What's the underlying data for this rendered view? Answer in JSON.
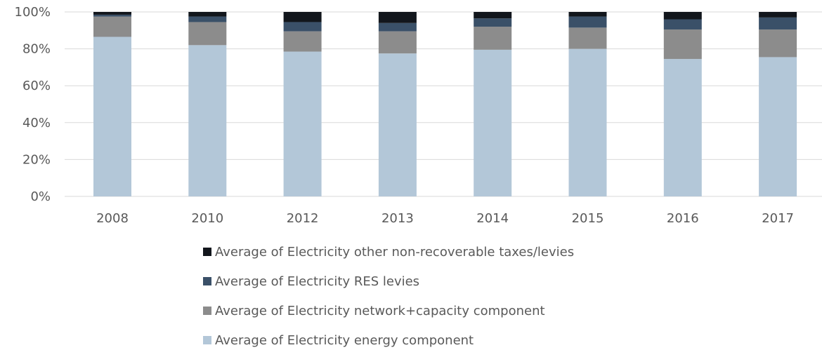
{
  "chart_data": {
    "type": "bar",
    "stacked": true,
    "percent": true,
    "categories": [
      "2008",
      "2010",
      "2012",
      "2013",
      "2014",
      "2015",
      "2016",
      "2017"
    ],
    "series": [
      {
        "name": "Average of Electricity energy component",
        "color": "#b3c7d8",
        "values": [
          86.5,
          82,
          78.5,
          77.5,
          79.5,
          80,
          74.5,
          75.5
        ]
      },
      {
        "name": "Average of Electricity network+capacity component",
        "color": "#8c8c8c",
        "values": [
          11,
          12.5,
          11,
          12,
          12.5,
          11.5,
          16,
          15
        ]
      },
      {
        "name": "Average of Electricity RES levies",
        "color": "#3a5068",
        "values": [
          1,
          3,
          5,
          4.5,
          4.5,
          6,
          5.5,
          6.5
        ]
      },
      {
        "name": "Average of Electricity other non-recoverable taxes/levies",
        "color": "#12161c",
        "values": [
          1.5,
          2.5,
          5.5,
          6,
          3.5,
          2.5,
          4,
          3
        ]
      }
    ],
    "y_ticks": [
      "0%",
      "20%",
      "40%",
      "60%",
      "80%",
      "100%"
    ],
    "ylim": [
      0,
      100
    ],
    "grid": true,
    "legend_position": "bottom",
    "legend_order": [
      3,
      2,
      1,
      0
    ]
  }
}
